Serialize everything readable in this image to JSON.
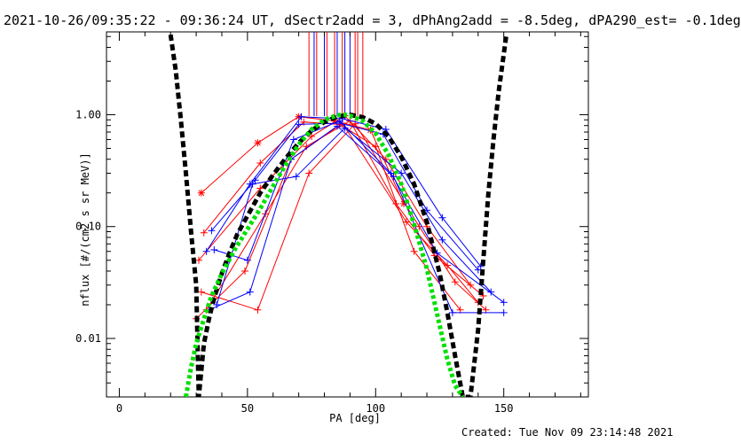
{
  "header": {
    "title": "2021-10-26/09:35:22 - 09:36:24 UT, dSectr2add = 3, dPhAng2add = -8.5deg, dPA290_est= -0.1deg"
  },
  "footer": {
    "created": "Created: Tue Nov 09 23:14:48 2021"
  },
  "colors": {
    "axes": "#000000",
    "fit_black": "#000000",
    "fit_green": "#00e000",
    "red_series": "#ff0000",
    "blue_series": "#0000ff"
  },
  "chart_data": {
    "type": "line",
    "xlabel": "PA [deg]",
    "ylabel": "nflux [#/(cm2 s sr MeV)]",
    "xlim": [
      -5,
      183
    ],
    "ylim": [
      0.003,
      5.5
    ],
    "yscale": "log",
    "xticks": [
      0,
      50,
      100,
      150
    ],
    "xtick_labels": [
      "0",
      "50",
      "100",
      "150"
    ],
    "yticks": [
      0.01,
      0.1,
      1
    ],
    "ytick_labels": [
      "0.01",
      "0.10",
      "1.00"
    ],
    "grid": false,
    "fit_curves": [
      {
        "color": "black",
        "x": [
          20,
          22,
          24,
          26,
          28,
          30,
          31,
          33,
          35,
          37,
          40,
          43,
          46,
          50,
          55,
          60,
          65,
          70,
          75,
          80,
          85,
          90,
          95,
          100,
          105,
          110,
          115,
          120,
          125,
          128,
          131,
          134,
          137,
          140,
          142,
          144,
          146,
          148,
          150,
          151
        ],
        "y": [
          5.2,
          2.5,
          0.9,
          0.3,
          0.09,
          0.03,
          0.003,
          0.009,
          0.015,
          0.023,
          0.038,
          0.058,
          0.085,
          0.125,
          0.2,
          0.29,
          0.41,
          0.56,
          0.72,
          0.86,
          0.96,
          1.0,
          0.95,
          0.83,
          0.64,
          0.42,
          0.24,
          0.11,
          0.038,
          0.017,
          0.007,
          0.003,
          0.003,
          0.012,
          0.05,
          0.2,
          0.6,
          1.6,
          3.5,
          5.2
        ]
      },
      {
        "color": "green",
        "x": [
          26,
          28,
          30,
          33,
          36,
          40,
          45,
          50,
          55,
          60,
          65,
          70,
          75,
          80,
          85,
          88,
          90,
          95,
          100,
          105,
          110,
          115,
          120,
          125,
          128,
          131,
          134
        ],
        "y": [
          0.003,
          0.0055,
          0.009,
          0.015,
          0.024,
          0.038,
          0.062,
          0.095,
          0.145,
          0.23,
          0.36,
          0.54,
          0.74,
          0.9,
          0.99,
          1.0,
          0.98,
          0.88,
          0.68,
          0.44,
          0.24,
          0.105,
          0.042,
          0.013,
          0.0065,
          0.0038,
          0.003
        ]
      }
    ],
    "series": [
      {
        "color": "red",
        "marker": "*",
        "x": [
          32,
          54,
          70,
          84,
          98,
          111
        ],
        "y": [
          0.2,
          0.56,
          0.96,
          0.88,
          0.73,
          0.16
        ]
      },
      {
        "color": "red",
        "marker": "+",
        "x": [
          33,
          55,
          72,
          86,
          100,
          115,
          133
        ],
        "y": [
          0.088,
          0.37,
          0.86,
          0.82,
          0.52,
          0.06,
          0.018
        ]
      },
      {
        "color": "red",
        "marker": "+",
        "x": [
          31,
          55,
          75,
          88,
          104,
          120,
          137
        ],
        "y": [
          0.05,
          0.22,
          0.64,
          0.98,
          0.4,
          0.1,
          0.03
        ]
      },
      {
        "color": "red",
        "marker": "+",
        "x": [
          34,
          57,
          73,
          90,
          108,
          123,
          142
        ],
        "y": [
          0.018,
          0.13,
          0.52,
          0.88,
          0.16,
          0.055,
          0.024
        ]
      },
      {
        "color": "red",
        "marker": "+",
        "x": [
          30,
          49,
          67,
          87,
          112,
          128,
          140
        ],
        "y": [
          0.015,
          0.04,
          0.4,
          0.84,
          0.11,
          0.045,
          0.021
        ]
      },
      {
        "color": "red",
        "marker": "+",
        "x": [
          32,
          54,
          74,
          92,
          117,
          131,
          143
        ],
        "y": [
          0.026,
          0.018,
          0.3,
          0.83,
          0.1,
          0.032,
          0.018
        ]
      },
      {
        "color": "blue",
        "marker": "+",
        "x": [
          34,
          51,
          71,
          87,
          104,
          126,
          141
        ],
        "y": [
          0.06,
          0.24,
          0.96,
          0.92,
          0.74,
          0.12,
          0.044
        ]
      },
      {
        "color": "blue",
        "marker": "+",
        "x": [
          36,
          53,
          70,
          86,
          103,
          120,
          140
        ],
        "y": [
          0.092,
          0.26,
          0.82,
          0.84,
          0.67,
          0.14,
          0.041
        ]
      },
      {
        "color": "blue",
        "marker": "+",
        "x": [
          37,
          50,
          68,
          86,
          106,
          124,
          150
        ],
        "y": [
          0.062,
          0.05,
          0.6,
          0.88,
          0.3,
          0.058,
          0.021
        ]
      },
      {
        "color": "blue",
        "marker": "+",
        "x": [
          35,
          51,
          67,
          85,
          107,
          130,
          150
        ],
        "y": [
          0.018,
          0.026,
          0.4,
          0.79,
          0.28,
          0.017,
          0.017
        ]
      },
      {
        "color": "blue",
        "marker": "+",
        "x": [
          38,
          52,
          69,
          88,
          110,
          126,
          145
        ],
        "y": [
          0.02,
          0.24,
          0.28,
          0.76,
          0.3,
          0.076,
          0.026
        ]
      }
    ],
    "vertical_markers": [
      {
        "color": "red",
        "x": [
          74,
          77,
          81,
          84,
          87,
          92,
          93,
          95
        ]
      },
      {
        "color": "blue",
        "x": [
          76,
          80,
          85,
          88,
          90
        ]
      }
    ]
  }
}
